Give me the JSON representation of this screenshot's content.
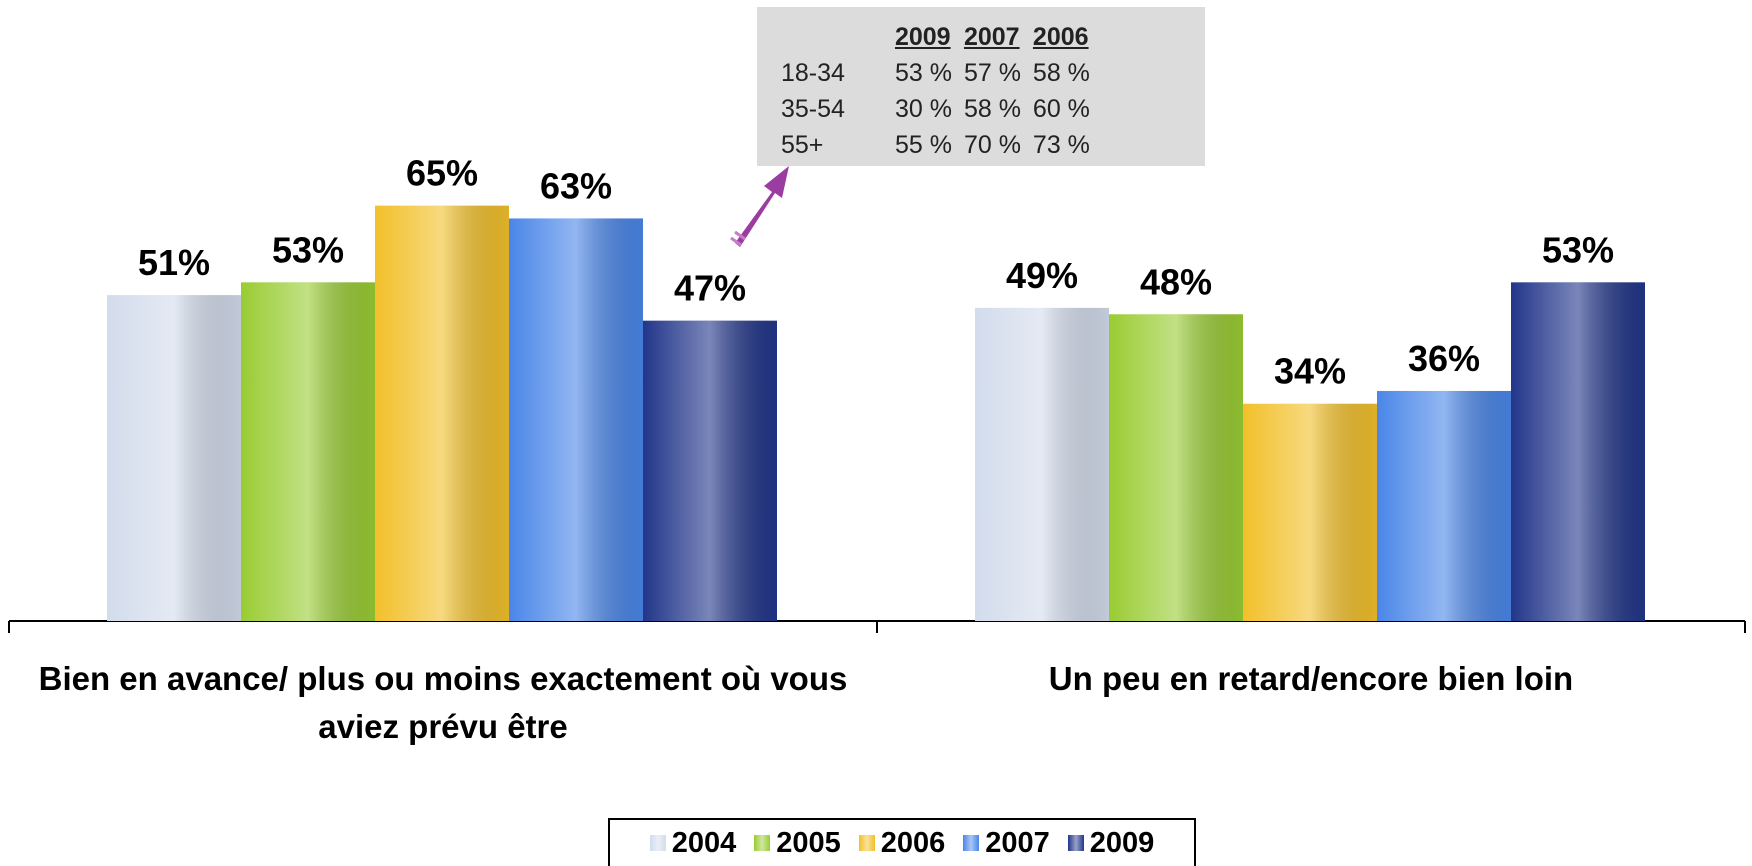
{
  "chart_data": {
    "type": "bar",
    "categories": [
      "Bien en avance/ plus ou moins exactement où vous aviez prévu être",
      "Un peu en retard/encore bien loin"
    ],
    "series": [
      {
        "name": "2004",
        "color": "#d3dcec",
        "values": [
          51,
          49
        ],
        "value_labels": [
          "51%",
          "49%"
        ]
      },
      {
        "name": "2005",
        "color": "#99cc33",
        "values": [
          53,
          48
        ],
        "value_labels": [
          "53%",
          "48%"
        ]
      },
      {
        "name": "2006",
        "color": "#f2c02a",
        "values": [
          65,
          34
        ],
        "value_labels": [
          "65%",
          "34%"
        ]
      },
      {
        "name": "2007",
        "color": "#4a86e8",
        "values": [
          63,
          36
        ],
        "value_labels": [
          "63%",
          "36%"
        ]
      },
      {
        "name": "2009",
        "color": "#22368a",
        "values": [
          47,
          53
        ],
        "value_labels": [
          "47%",
          "53%"
        ]
      }
    ],
    "annotation_table": {
      "columns": [
        "2009",
        "2007",
        "2006"
      ],
      "rows": [
        {
          "label": "18-34",
          "values": [
            "53 %",
            "57 %",
            "58 %"
          ]
        },
        {
          "label": "35-54",
          "values": [
            "30 %",
            "58 %",
            "60 %"
          ]
        },
        {
          "label": "55+",
          "values": [
            "55 %",
            "70 %",
            "73 %"
          ]
        }
      ]
    }
  }
}
